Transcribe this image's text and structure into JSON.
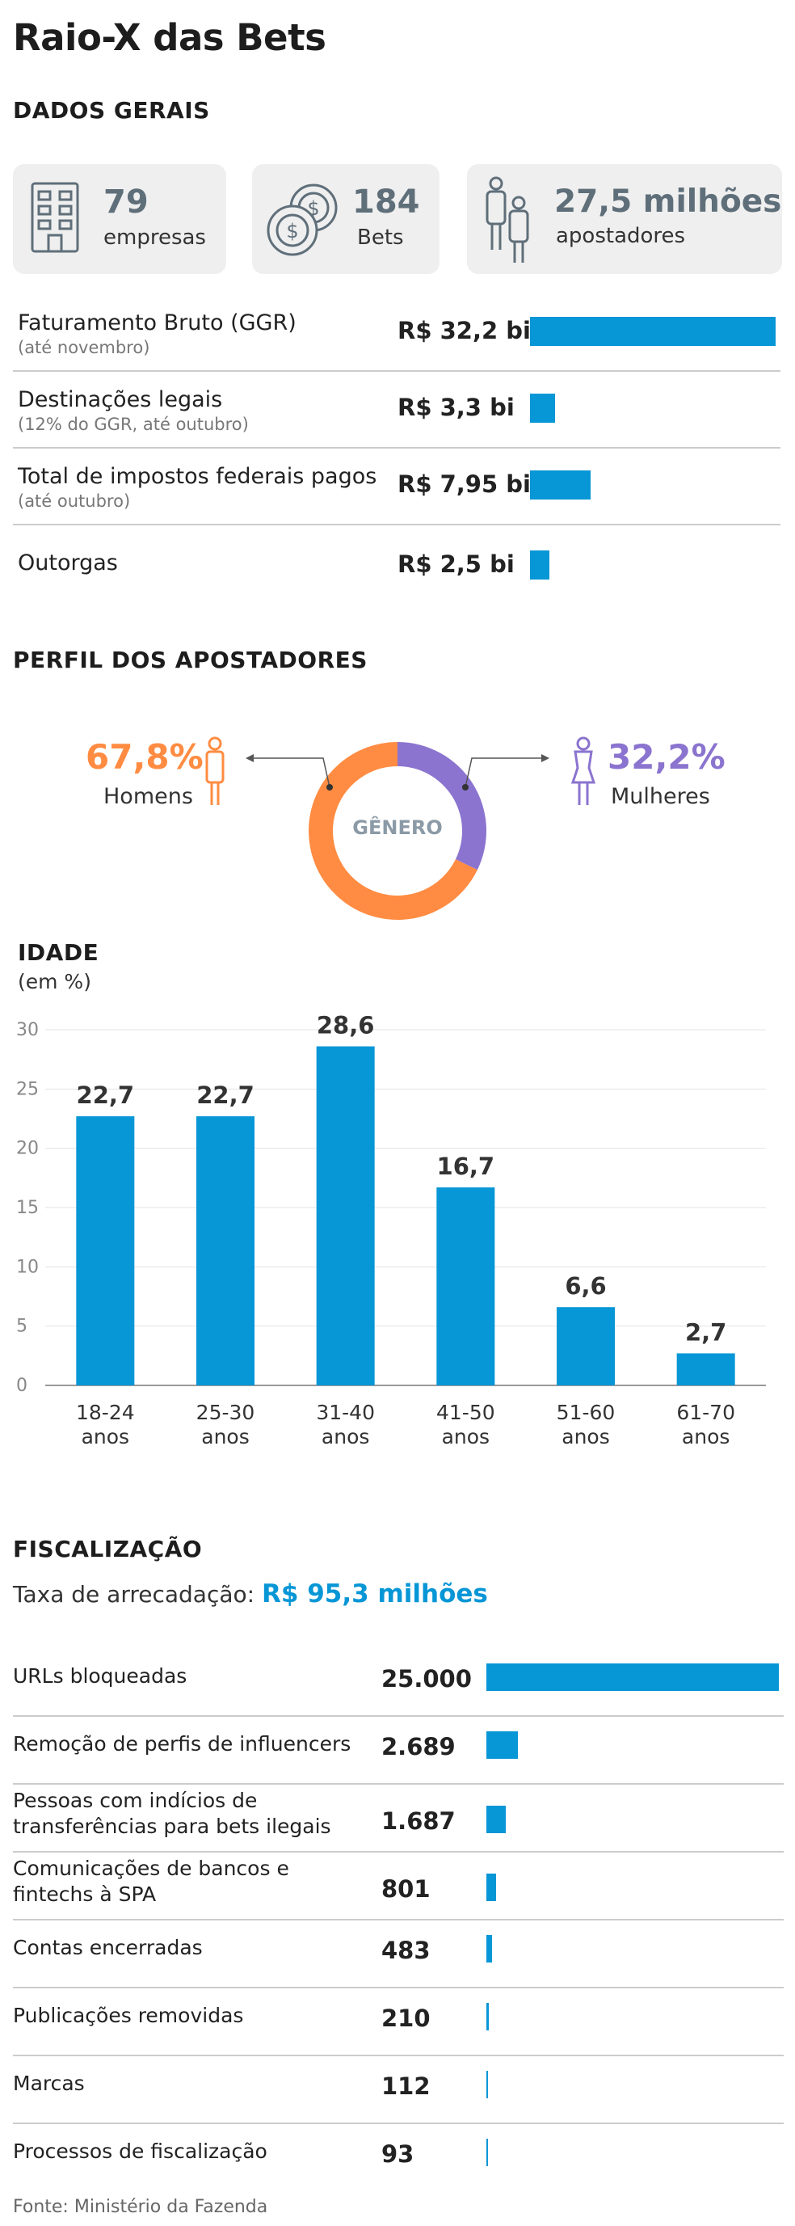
{
  "title": "Raio-X das Bets",
  "dados_gerais": {
    "heading": "DADOS GERAIS",
    "cards": [
      {
        "value": "79",
        "label": "empresas",
        "icon": "building-icon"
      },
      {
        "value": "184",
        "label": "Bets",
        "icon": "coins-icon"
      },
      {
        "value": "27,5 milhões",
        "label": "apostadores",
        "icon": "people-icon"
      }
    ],
    "chart_data": {
      "type": "bar",
      "orientation": "horizontal",
      "units": "R$ bilhões",
      "rows": [
        {
          "label": "Faturamento Bruto (GGR)",
          "sub": "(até novembro)",
          "value_text": "R$ 32,2 bi",
          "value": 32.2
        },
        {
          "label": "Destinações legais",
          "sub": "(12% do GGR, até outubro)",
          "value_text": "R$ 3,3 bi",
          "value": 3.3
        },
        {
          "label": "Total de impostos federais pagos",
          "sub": "(até outubro)",
          "value_text": "R$ 7,95 bi",
          "value": 7.95
        },
        {
          "label": "Outorgas",
          "sub": "",
          "value_text": "R$ 2,5 bi",
          "value": 2.5
        }
      ]
    }
  },
  "perfil": {
    "heading": "PERFIL DOS APOSTADORES",
    "chart_data": {
      "type": "pie",
      "center_label": "GÊNERO",
      "slices": [
        {
          "name": "Homens",
          "pct_text": "67,8%",
          "value": 67.8,
          "color": "#ff8c42"
        },
        {
          "name": "Mulheres",
          "pct_text": "32,2%",
          "value": 32.2,
          "color": "#8b74cf"
        }
      ]
    }
  },
  "idade": {
    "heading": "IDADE",
    "subheading": "(em %)",
    "chart_data": {
      "type": "bar",
      "categories": [
        [
          "18-24",
          "anos"
        ],
        [
          "25-30",
          "anos"
        ],
        [
          "31-40",
          "anos"
        ],
        [
          "41-50",
          "anos"
        ],
        [
          "51-60",
          "anos"
        ],
        [
          "61-70",
          "anos"
        ]
      ],
      "values": [
        22.7,
        22.7,
        28.6,
        16.7,
        6.6,
        2.7
      ],
      "value_labels": [
        "22,7",
        "22,7",
        "28,6",
        "16,7",
        "6,6",
        "2,7"
      ],
      "yticks": [
        "0",
        "5",
        "10",
        "15",
        "20",
        "25",
        "30"
      ],
      "ylim": [
        0,
        30
      ],
      "ylabel": "(em %)",
      "color": "#0796d6"
    }
  },
  "fiscalizacao": {
    "heading": "FISCALIZAÇÃO",
    "taxa_label": "Taxa de arrecadação:",
    "taxa_value": "R$ 95,3 milhões",
    "chart_data": {
      "type": "bar",
      "orientation": "horizontal",
      "rows": [
        {
          "label": [
            "URLs bloqueadas"
          ],
          "value_text": "25.000",
          "value": 25000
        },
        {
          "label": [
            "Remoção de perfis de influencers"
          ],
          "value_text": "2.689",
          "value": 2689
        },
        {
          "label": [
            "Pessoas com indícios de",
            "transferências para bets ilegais"
          ],
          "value_text": "1.687",
          "value": 1687
        },
        {
          "label": [
            "Comunicações de bancos e",
            "fintechs à SPA"
          ],
          "value_text": "801",
          "value": 801
        },
        {
          "label": [
            "Contas encerradas"
          ],
          "value_text": "483",
          "value": 483
        },
        {
          "label": [
            "Publicações removidas"
          ],
          "value_text": "210",
          "value": 210
        },
        {
          "label": [
            "Marcas"
          ],
          "value_text": "112",
          "value": 112
        },
        {
          "label": [
            "Processos de fiscalização"
          ],
          "value_text": "93",
          "value": 93
        }
      ]
    }
  },
  "source": "Fonte: Ministério da Fazenda",
  "colors": {
    "accent": "#0796d6",
    "men": "#ff8c42",
    "women": "#8b74cf",
    "icon": "#5f6f7a"
  }
}
